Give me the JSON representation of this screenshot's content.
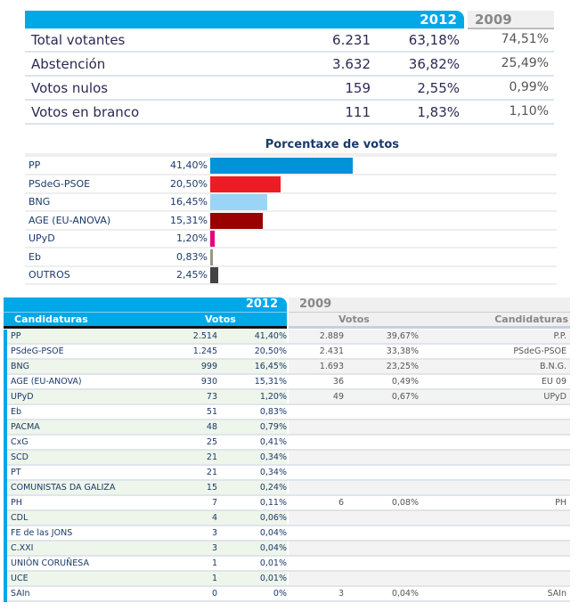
{
  "summary": {
    "year_current": "2012",
    "year_previous": "2009",
    "rows": [
      {
        "label": "Total votantes",
        "votes": "6.231",
        "pct": "63,18%",
        "pct_2009": "74,51%"
      },
      {
        "label": "Abstención",
        "votes": "3.632",
        "pct": "36,82%",
        "pct_2009": "25,49%"
      },
      {
        "label": "Votos nulos",
        "votes": "159",
        "pct": "2,55%",
        "pct_2009": "0,99%"
      },
      {
        "label": "Votos en branco",
        "votes": "111",
        "pct": "1,83%",
        "pct_2009": "1,10%"
      }
    ]
  },
  "chart_data": {
    "type": "bar",
    "title": "Porcentaxe de votos",
    "categories": [
      "PP",
      "PSdeG-PSOE",
      "BNG",
      "AGE (EU-ANOVA)",
      "UPyD",
      "Eb",
      "OUTROS"
    ],
    "labels": [
      "41,40%",
      "20,50%",
      "16,45%",
      "15,31%",
      "1,20%",
      "0,83%",
      "2,45%"
    ],
    "values": [
      41.4,
      20.5,
      16.45,
      15.31,
      1.2,
      0.83,
      2.45
    ],
    "colors": [
      "#0093d8",
      "#ec1c24",
      "#9ad4f7",
      "#990000",
      "#e6007e",
      "#999980",
      "#444444"
    ]
  },
  "results": {
    "year_current": "2012",
    "year_previous": "2009",
    "col_candidaturas": "Candidaturas",
    "col_votos": "Votos",
    "col_votos_2009": "Votos",
    "col_candidaturas_2009": "Candidaturas",
    "rows": [
      {
        "name": "PP",
        "votes": "2.514",
        "pct": "41,40%",
        "votes_2009": "2.889",
        "pct_2009": "39,67%",
        "name_2009": "P.P."
      },
      {
        "name": "PSdeG-PSOE",
        "votes": "1.245",
        "pct": "20,50%",
        "votes_2009": "2.431",
        "pct_2009": "33,38%",
        "name_2009": "PSdeG-PSOE"
      },
      {
        "name": "BNG",
        "votes": "999",
        "pct": "16,45%",
        "votes_2009": "1.693",
        "pct_2009": "23,25%",
        "name_2009": "B.N.G."
      },
      {
        "name": "AGE (EU-ANOVA)",
        "votes": "930",
        "pct": "15,31%",
        "votes_2009": "36",
        "pct_2009": "0,49%",
        "name_2009": "EU 09"
      },
      {
        "name": "UPyD",
        "votes": "73",
        "pct": "1,20%",
        "votes_2009": "49",
        "pct_2009": "0,67%",
        "name_2009": "UPyD"
      },
      {
        "name": "Eb",
        "votes": "51",
        "pct": "0,83%"
      },
      {
        "name": "PACMA",
        "votes": "48",
        "pct": "0,79%"
      },
      {
        "name": "CxG",
        "votes": "25",
        "pct": "0,41%"
      },
      {
        "name": "SCD",
        "votes": "21",
        "pct": "0,34%"
      },
      {
        "name": "PT",
        "votes": "21",
        "pct": "0,34%"
      },
      {
        "name": "COMUNISTAS DA GALIZA",
        "votes": "15",
        "pct": "0,24%"
      },
      {
        "name": "PH",
        "votes": "7",
        "pct": "0,11%",
        "votes_2009": "6",
        "pct_2009": "0,08%",
        "name_2009": "PH"
      },
      {
        "name": "CDL",
        "votes": "4",
        "pct": "0,06%"
      },
      {
        "name": "FE de las JONS",
        "votes": "3",
        "pct": "0,04%"
      },
      {
        "name": "C.XXI",
        "votes": "3",
        "pct": "0,04%"
      },
      {
        "name": "UNIÓN CORUÑESA",
        "votes": "1",
        "pct": "0,01%"
      },
      {
        "name": "UCE",
        "votes": "1",
        "pct": "0,01%"
      },
      {
        "name": "SAIn",
        "votes": "0",
        "pct": "0%",
        "votes_2009": "3",
        "pct_2009": "0,04%",
        "name_2009": "SAIn"
      }
    ]
  }
}
